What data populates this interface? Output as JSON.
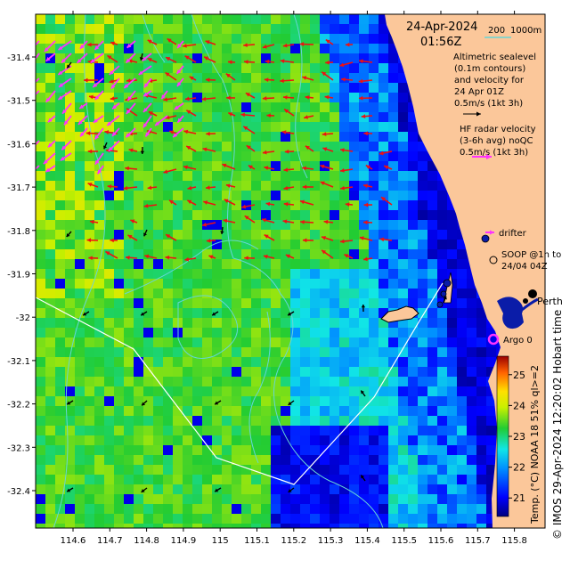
{
  "map": {
    "date": "24-Apr-2024",
    "time": "01:56Z",
    "scale": {
      "short": "200",
      "long": "1000m"
    },
    "legend": {
      "altimetry_line1": "Altimetric sealevel",
      "altimetry_line2": "(0.1m contours)",
      "altimetry_line3": "and velocity for",
      "altimetry_line4": "24 Apr 01Z",
      "altimetry_speed": "0.5m/s (1kt 3h)",
      "hf_line1": "HF radar velocity",
      "hf_line2": "(3-6h avg) noQC",
      "hf_speed": "0.5m/s (1kt 3h)",
      "drifter": "drifter",
      "soop_line1": "SOOP @1h to",
      "soop_line2": "24/04 04Z",
      "argo": "Argo 0",
      "perth": "Perth"
    },
    "lat_ticks": [
      "-31.4",
      "-31.5",
      "-31.6",
      "-31.7",
      "-31.8",
      "-31.9",
      "-32",
      "-32.1",
      "-32.2",
      "-32.3",
      "-32.4"
    ],
    "lon_ticks": [
      "114.6",
      "114.7",
      "114.8",
      "114.9",
      "115",
      "115.1",
      "115.2",
      "115.3",
      "115.4",
      "115.5",
      "115.6",
      "115.7",
      "115.8"
    ],
    "colorbar": {
      "label": "Temp. (°C) NOAA 18 51% ql>=2",
      "ticks": [
        "25",
        "24",
        "23",
        "22",
        "21"
      ],
      "min": 20.4,
      "max": 25.6
    },
    "credit": "© IMOS 29-Apr-2024 12:20:02 Hobart time",
    "colors": {
      "land": "#fbc79a",
      "hf_arrow": "#ee1111",
      "drifter": "#ff33ff",
      "contour": "#66d6d6"
    }
  }
}
